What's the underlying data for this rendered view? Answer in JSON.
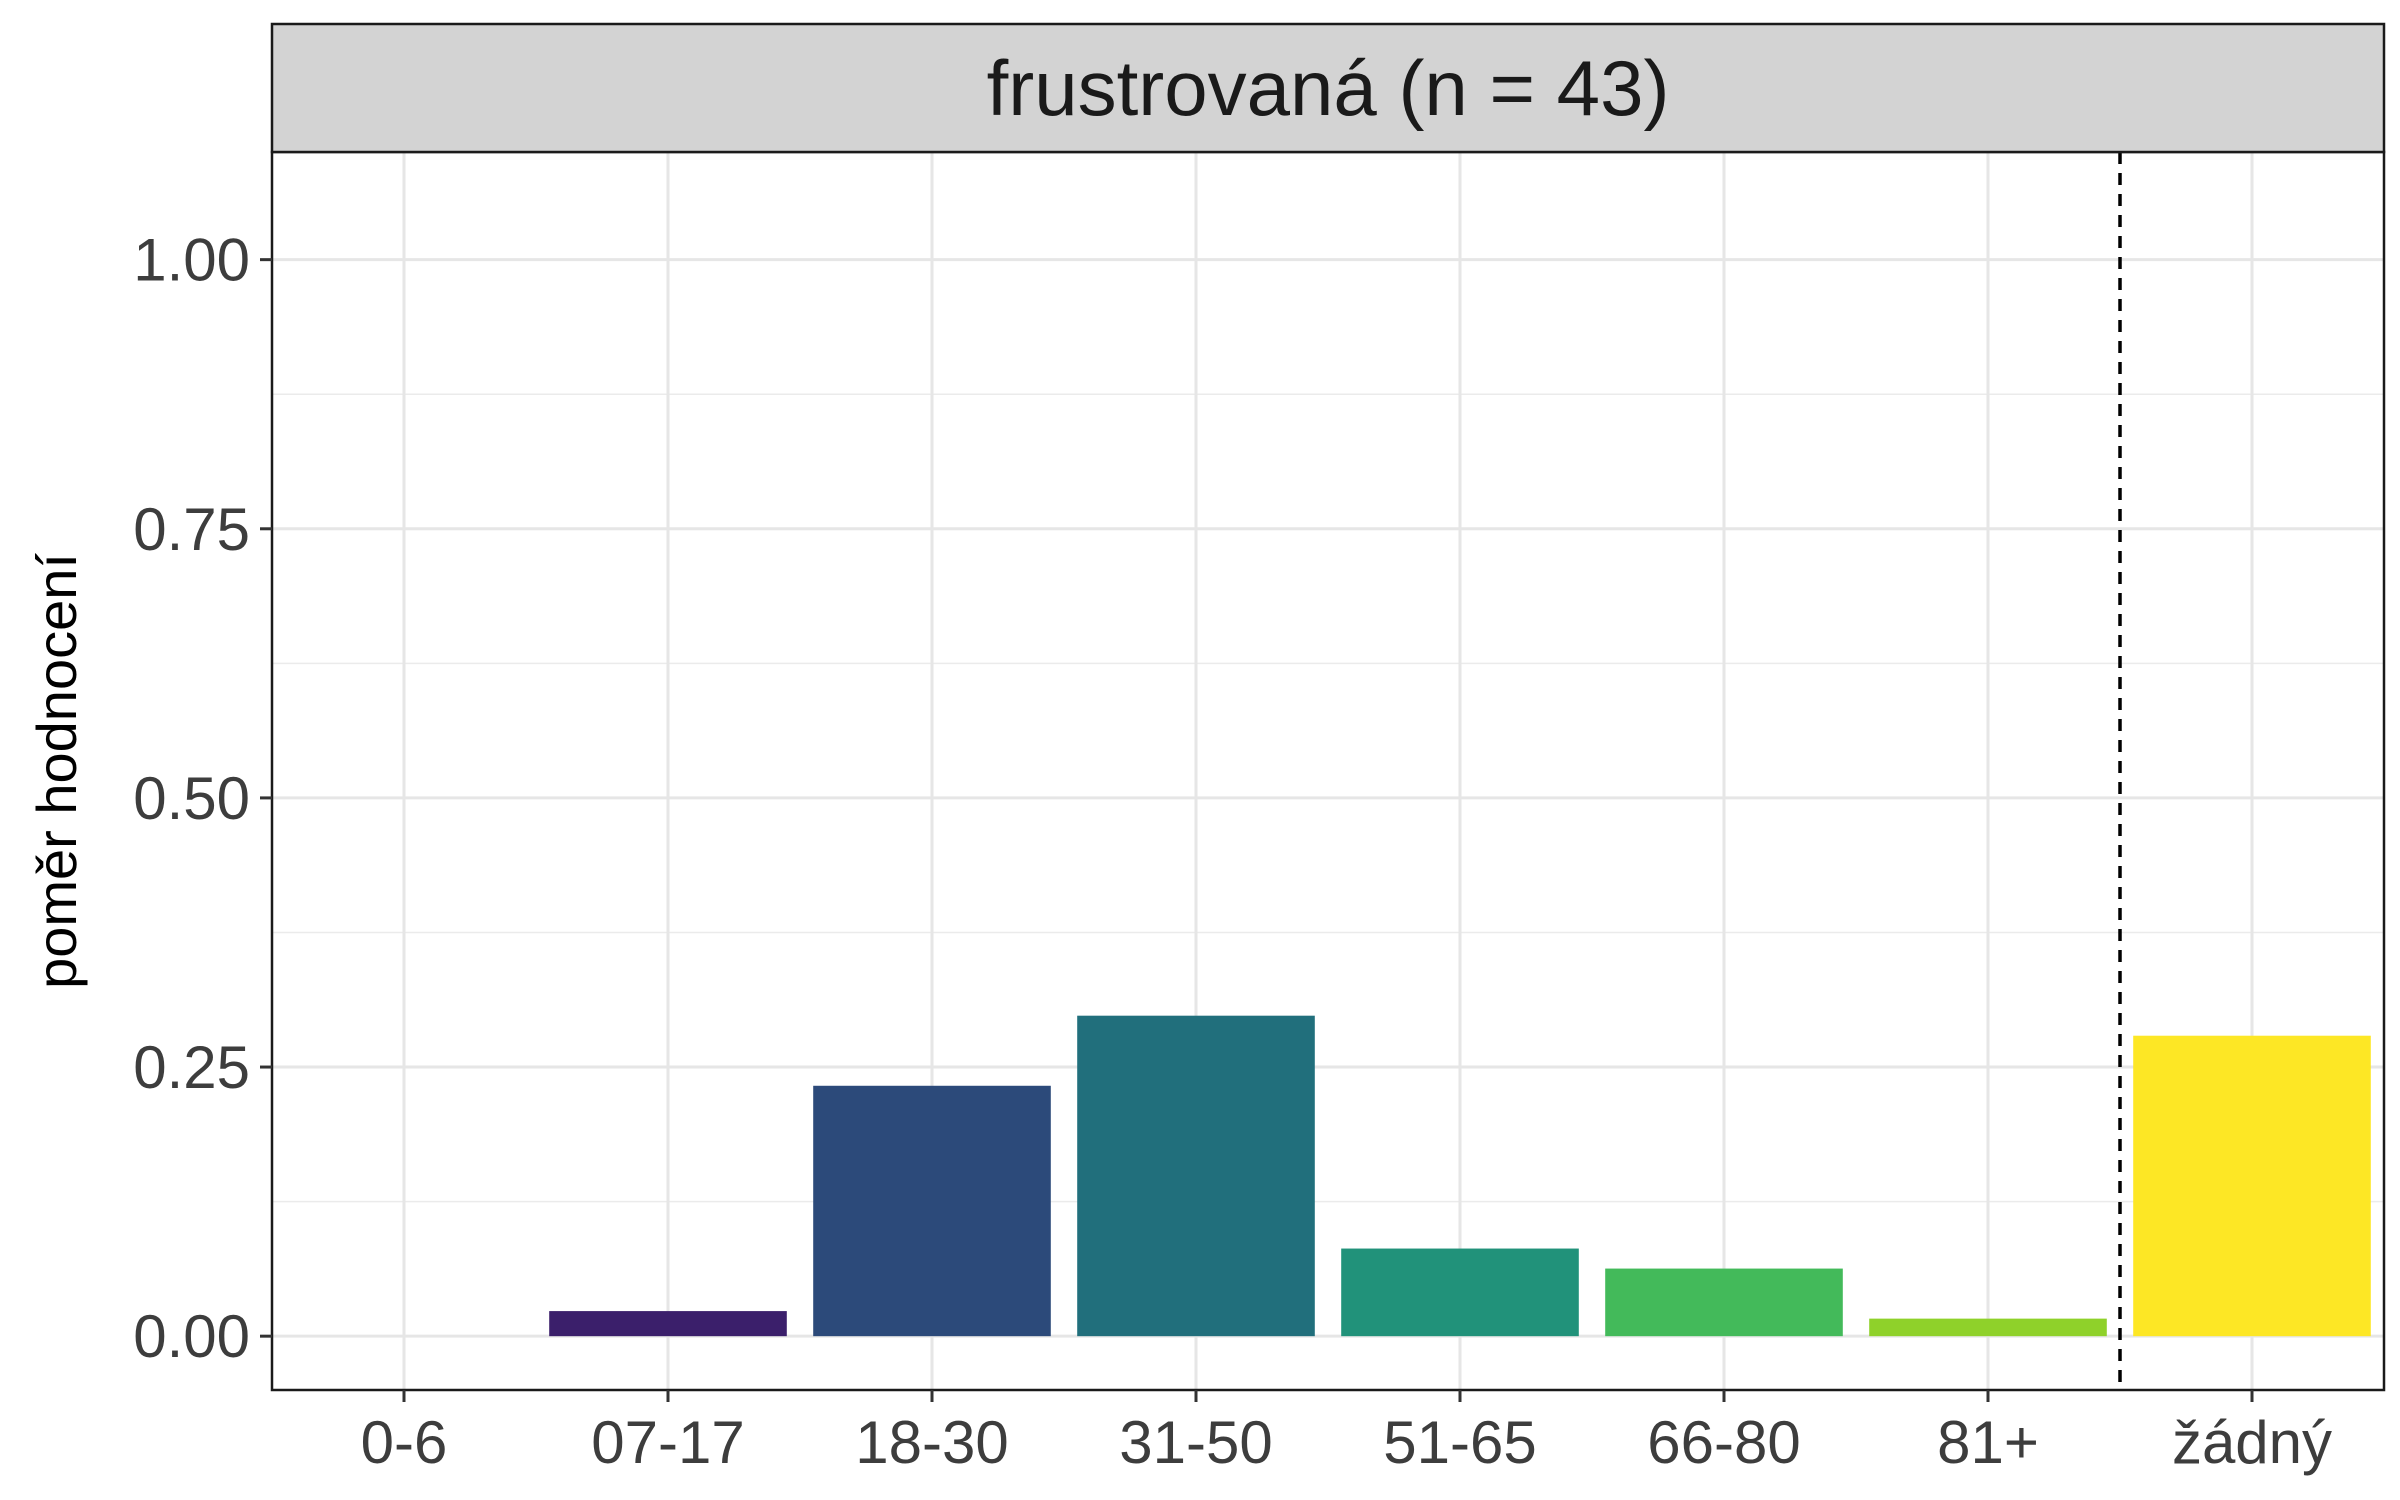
{
  "chart_data": {
    "type": "bar",
    "title": "frustrovaná (n = 43)",
    "xlabel": "",
    "ylabel": "poměr hodnocení",
    "categories": [
      "0-6",
      "07-17",
      "18-30",
      "31-50",
      "51-65",
      "66-80",
      "81+",
      "žádný"
    ],
    "values": [
      0.0,
      0.0233,
      0.2326,
      0.2977,
      0.0814,
      0.0628,
      0.0163,
      0.2791
    ],
    "colors": [
      "#440154",
      "#3B1F6B",
      "#2C4A7A",
      "#216F7C",
      "#21927A",
      "#43BA5A",
      "#8FD12A",
      "#FDE725"
    ],
    "ylim": [
      -0.05,
      1.1
    ],
    "yticks": [
      "0.00",
      "0.25",
      "0.50",
      "0.75",
      "1.00"
    ],
    "ytick_values": [
      0,
      0.25,
      0.5,
      0.75,
      1.0
    ],
    "grid": true,
    "reference_line": {
      "style": "dashed",
      "between": [
        "81+",
        "žádný"
      ]
    },
    "legend": "none"
  }
}
